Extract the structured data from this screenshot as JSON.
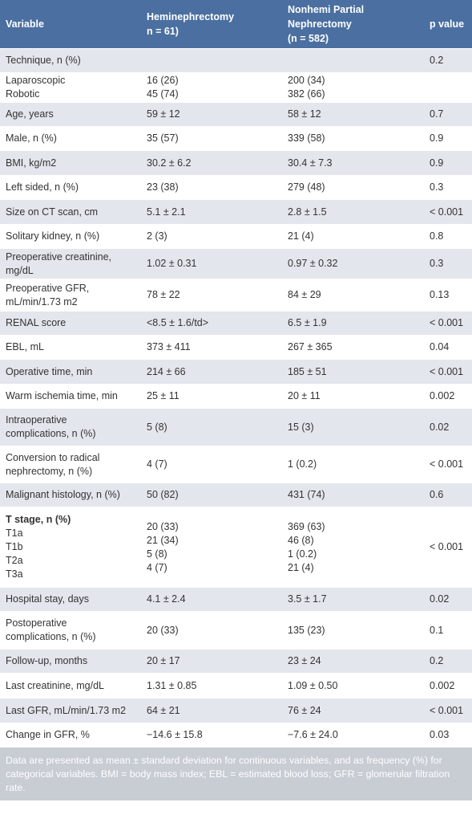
{
  "header": {
    "variable": "Variable",
    "col2": "Heminephrectomy\nn = 61)",
    "col3": "Nonhemi Partial\nNephrectomy\n(n = 582)",
    "col4": "p value"
  },
  "rows": [
    {
      "v": "Technique, n (%)",
      "a": "",
      "b": "",
      "p": "0.2"
    },
    {
      "v": "Laparoscopic\nRobotic",
      "a": "16 (26)\n45 (74)",
      "b": "200 (34)\n382 (66)",
      "p": ""
    },
    {
      "v": "Age, years",
      "a": "59 ± 12",
      "b": "58 ± 12",
      "p": "0.7"
    },
    {
      "v": "Male, n (%)",
      "a": "35 (57)",
      "b": "339 (58)",
      "p": "0.9"
    },
    {
      "v": "BMI, kg/m2",
      "a": "30.2 ± 6.2",
      "b": "30.4 ± 7.3",
      "p": "0.9"
    },
    {
      "v": "Left sided, n (%)",
      "a": "23 (38)",
      "b": "279 (48)",
      "p": "0.3"
    },
    {
      "v": "Size on CT scan, cm",
      "a": "5.1 ± 2.1",
      "b": "2.8 ± 1.5",
      "p": "< 0.001"
    },
    {
      "v": "Solitary kidney, n (%)",
      "a": "2 (3)",
      "b": "21 (4)",
      "p": "0.8"
    },
    {
      "v": "Preoperative creatinine,\nmg/dL",
      "a": "1.02 ± 0.31",
      "b": "0.97 ± 0.32",
      "p": "0.3"
    },
    {
      "v": "Preoperative GFR,\nmL/min/1.73 m2",
      "a": "78 ± 22",
      "b": "84 ± 29",
      "p": "0.13"
    },
    {
      "v": "RENAL score",
      "a": "<8.5 ± 1.6/td>",
      "b": "6.5 ± 1.9",
      "p": "< 0.001"
    },
    {
      "v": "EBL, mL",
      "a": "373 ± 411",
      "b": "267 ± 365",
      "p": "0.04"
    },
    {
      "v": "Operative time, min",
      "a": "214 ± 66",
      "b": "185 ± 51",
      "p": "< 0.001"
    },
    {
      "v": "Warm ischemia time, min",
      "a": "25 ± 11",
      "b": "20 ± 11",
      "p": "0.002"
    },
    {
      "v": "Intraoperative\ncomplications, n (%)",
      "a": "5 (8)",
      "b": "15 (3)",
      "p": "0.02"
    },
    {
      "v": "Conversion to radical\nnephrectomy, n (%)",
      "a": "4 (7)",
      "b": "1 (0.2)",
      "p": "< 0.001"
    },
    {
      "v": "Malignant histology, n (%)",
      "a": "50 (82)",
      "b": "431 (74)",
      "p": "0.6"
    },
    {
      "v_bold": "T stage, n (%)",
      "v": "T1a\nT1b\nT2a\nT3a",
      "a": "20 (33)\n21 (34)\n5 (8)\n4 (7)",
      "b": "369 (63)\n46 (8)\n1 (0.2)\n21 (4)",
      "p": "< 0.001"
    },
    {
      "v": "Hospital stay, days",
      "a": "4.1 ± 2.4",
      "b": "3.5 ± 1.7",
      "p": "0.02"
    },
    {
      "v": "Postoperative\ncomplications, n (%)",
      "a": "20 (33)",
      "b": "135 (23)",
      "p": "0.1"
    },
    {
      "v": "Follow-up, months",
      "a": "20 ± 17",
      "b": "23 ± 24",
      "p": "0.2"
    },
    {
      "v": "Last creatinine, mg/dL",
      "a": "1.31 ± 0.85",
      "b": "1.09 ± 0.50",
      "p": "0.002"
    },
    {
      "v": "Last GFR, mL/min/1.73 m2",
      "a": "64 ± 21",
      "b": "76 ± 24",
      "p": "< 0.001"
    },
    {
      "v": "Change in GFR, %",
      "a": "−14.6 ± 15.8",
      "b": "−7.6 ± 24.0",
      "p": "0.03"
    }
  ],
  "footnote": "Data are presented as mean ± standard deviation for continuous variables, and as frequency (%) for categorical variables. BMI = body mass index; EBL = estimated blood loss; GFR = glomerular filtration rate."
}
